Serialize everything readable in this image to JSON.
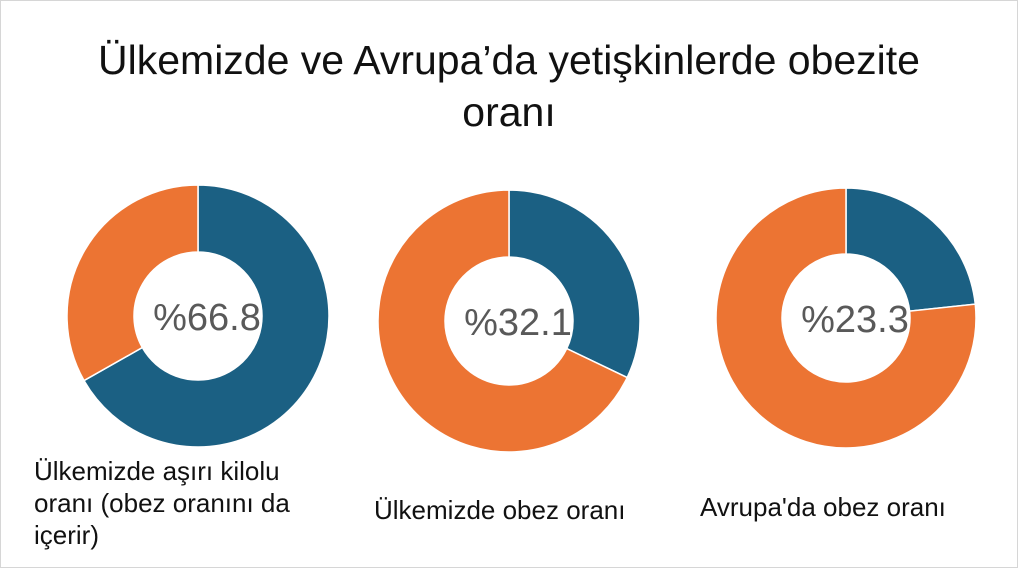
{
  "chart_data": {
    "title_line1": "Ülkemizde ve Avrupa’da yetişkinlerde obezite",
    "title_line2": "oranı",
    "charts": [
      {
        "type": "pie",
        "donut": true,
        "center_label": "%66.8",
        "caption_lines": [
          "Ülkemizde aşırı kilolu",
          "oranı (obez oranını da",
          "içerir)"
        ],
        "slices": [
          {
            "value": 66.8,
            "color": "#1b6083"
          },
          {
            "value": 33.2,
            "color": "#ec7433"
          }
        ]
      },
      {
        "type": "pie",
        "donut": true,
        "center_label": "%32.1",
        "caption_lines": [
          "Ülkemizde obez oranı"
        ],
        "slices": [
          {
            "value": 32.1,
            "color": "#1b6083"
          },
          {
            "value": 67.9,
            "color": "#ec7433"
          }
        ]
      },
      {
        "type": "pie",
        "donut": true,
        "center_label": "%23.3",
        "caption_lines": [
          "Avrupa'da obez oranı"
        ],
        "slices": [
          {
            "value": 23.3,
            "color": "#1b6083"
          },
          {
            "value": 76.7,
            "color": "#ec7433"
          }
        ]
      }
    ]
  }
}
